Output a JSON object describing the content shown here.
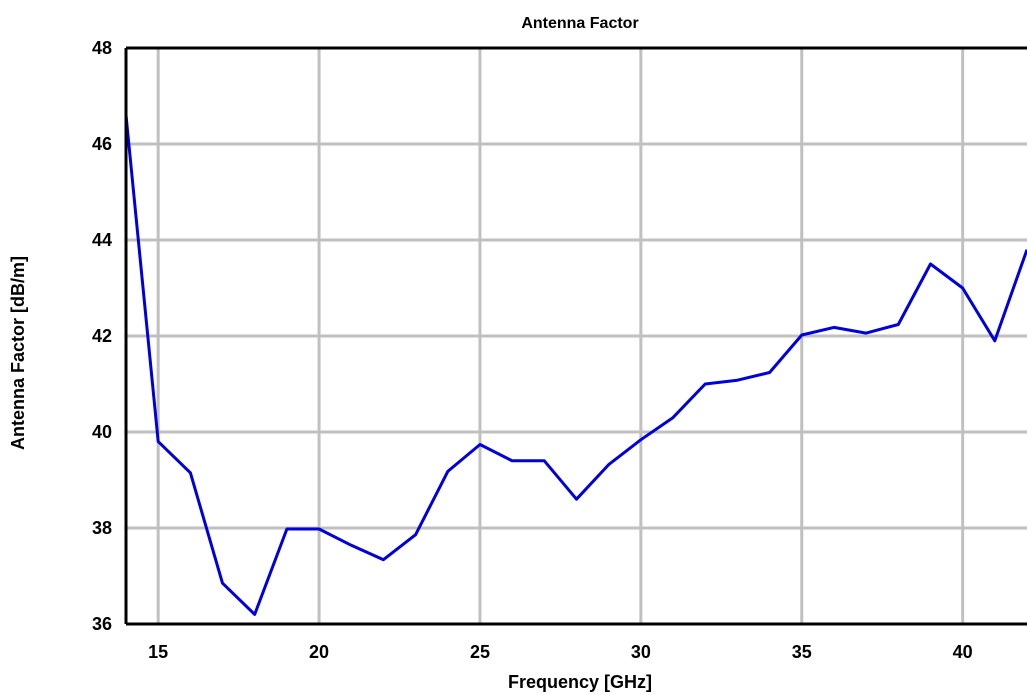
{
  "chart_data": {
    "type": "line",
    "title": "Antenna Factor",
    "xlabel": "Frequency [GHz]",
    "ylabel": "Antenna Factor [dB/m]",
    "xlim": [
      14,
      42
    ],
    "ylim": [
      36,
      48
    ],
    "x_ticks": [
      15,
      20,
      25,
      30,
      35,
      40
    ],
    "y_ticks": [
      36,
      38,
      40,
      42,
      44,
      46,
      48
    ],
    "grid": true,
    "line_color": "#0000dd",
    "grid_color": "#c0c0c0",
    "series": [
      {
        "x": [
          14,
          15,
          16,
          17,
          18,
          19,
          20,
          21,
          22,
          23,
          24,
          25,
          26,
          27,
          28,
          29,
          30,
          31,
          32,
          33,
          34,
          35,
          36,
          37,
          38,
          39,
          40,
          41,
          42
        ],
        "values": [
          46.6,
          39.8,
          39.15,
          36.85,
          36.2,
          37.98,
          37.98,
          37.64,
          37.34,
          37.86,
          39.18,
          39.74,
          39.4,
          39.4,
          38.6,
          39.32,
          39.84,
          40.3,
          41.0,
          41.08,
          41.24,
          42.02,
          42.18,
          42.06,
          42.24,
          43.5,
          43.0,
          41.9,
          43.8
        ]
      }
    ]
  }
}
